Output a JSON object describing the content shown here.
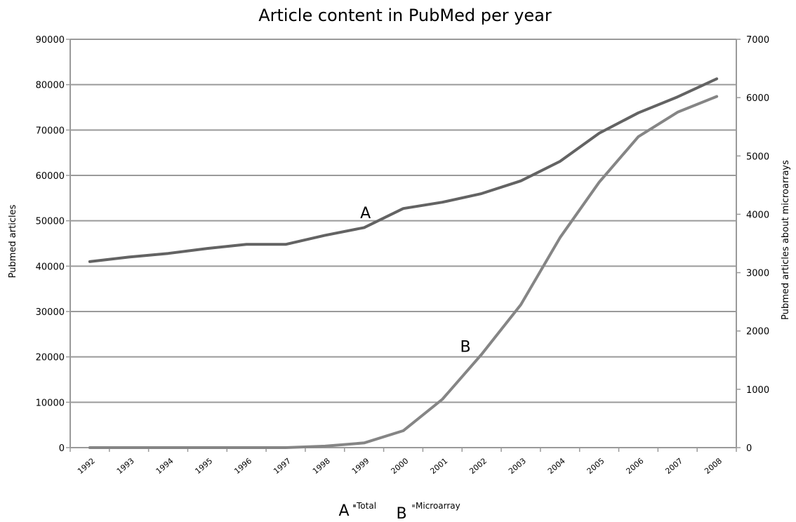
{
  "chart_data": {
    "type": "line",
    "title": "Article content in PubMed per year",
    "x": [
      "1992",
      "1993",
      "1994",
      "1995",
      "1996",
      "1997",
      "1998",
      "1999",
      "2000",
      "2001",
      "2002",
      "2003",
      "2004",
      "2005",
      "2006",
      "2007",
      "2008"
    ],
    "ylabel": "Pubmed articles",
    "y2label": "Pubmed articles about microarrays",
    "ylim": [
      0,
      90000
    ],
    "y2lim": [
      0,
      7000
    ],
    "yticks": [
      "0",
      "10000",
      "20000",
      "30000",
      "40000",
      "50000",
      "60000",
      "70000",
      "80000",
      "90000"
    ],
    "y2ticks": [
      "0",
      "1000",
      "2000",
      "3000",
      "4000",
      "5000",
      "6000",
      "7000"
    ],
    "grid": true,
    "legend_position": "bottom",
    "series": [
      {
        "name": "Total",
        "marker": "A",
        "axis": "left",
        "color": "#636363",
        "values": [
          41000,
          42000,
          42800,
          43900,
          44800,
          44800,
          46800,
          48500,
          52700,
          54100,
          56000,
          58800,
          63100,
          69300,
          73800,
          77300,
          81300
        ]
      },
      {
        "name": "Microarray",
        "marker": "B",
        "axis": "right",
        "color": "#858585",
        "values": [
          0,
          0,
          0,
          0,
          0,
          0,
          25,
          80,
          290,
          830,
          1600,
          2450,
          3600,
          4550,
          5330,
          5750,
          6020
        ]
      }
    ],
    "annotations": [
      {
        "text": "A",
        "x_index": 7,
        "value": 50600,
        "axis": "left"
      },
      {
        "text": "B",
        "x_index": 9.55,
        "value": 1640,
        "axis": "right"
      }
    ]
  }
}
